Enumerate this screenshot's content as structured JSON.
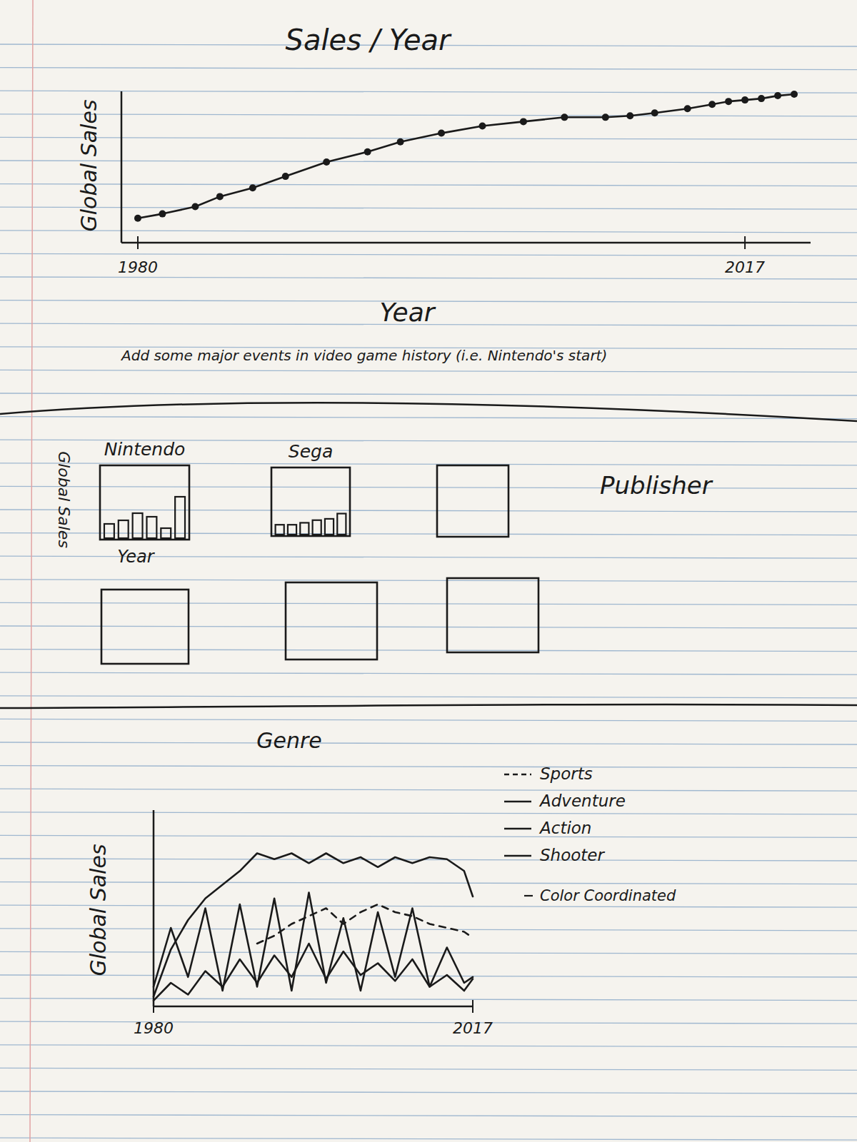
{
  "chart_data": [
    {
      "type": "line",
      "title": "Sales / Year",
      "x_label": "Year",
      "y_label": "Global Sales",
      "annotation": "Add some major events in video game history (i.e. Nintendo's start)",
      "x": [
        1980,
        1981.5,
        1983.5,
        1985,
        1987,
        1989,
        1991.5,
        1994,
        1996,
        1998.5,
        2001,
        2003.5,
        2006,
        2008.5,
        2010,
        2011.5,
        2013.5,
        2015,
        2016,
        2017,
        2018,
        2019,
        2020
      ],
      "values": [
        1.7,
        2.0,
        2.5,
        3.2,
        3.8,
        4.6,
        5.6,
        6.3,
        7.0,
        7.6,
        8.1,
        8.4,
        8.7,
        8.7,
        8.8,
        9.0,
        9.3,
        9.6,
        9.8,
        9.9,
        10.0,
        10.2,
        10.3
      ],
      "color": "#1a1a1a",
      "marker": "circle",
      "xlim": [
        1979,
        2021
      ],
      "ylim": [
        0,
        10.5
      ],
      "xticks": [
        1980,
        2017
      ],
      "tick_labels": "x"
    },
    {
      "type": "bar",
      "title": "Publisher",
      "x_label": "Year",
      "y_label": "Global Sales",
      "ylim": [
        0,
        10
      ],
      "tick_labels": false,
      "color": "#1a1a1a",
      "panels": [
        {
          "title": "Nintendo",
          "categories": [
            null,
            null,
            null,
            null,
            null,
            null
          ],
          "values": [
            2.0,
            2.5,
            3.5,
            3.0,
            1.4,
            5.8
          ]
        },
        {
          "title": "Sega",
          "categories": [
            null,
            null,
            null,
            null,
            null,
            null
          ],
          "values": [
            1.5,
            1.5,
            1.8,
            2.2,
            2.4,
            3.2
          ]
        },
        {
          "categories": [],
          "values": []
        },
        {
          "categories": [],
          "values": []
        },
        {
          "categories": [],
          "values": []
        },
        {
          "categories": [],
          "values": []
        }
      ]
    },
    {
      "type": "line",
      "title": "Genre",
      "y_label": "Global Sales",
      "note": "Color Coordinated",
      "x": [
        1980,
        1982,
        1984,
        1986,
        1988,
        1990,
        1992,
        1994,
        1996,
        1998,
        2000,
        2002,
        2004,
        2006,
        2008,
        2010,
        2012,
        2014,
        2016,
        2017
      ],
      "series": [
        {
          "name": "Sports",
          "color": "#1a1a1a",
          "line_style": "dashed",
          "values": [
            null,
            null,
            null,
            null,
            null,
            null,
            3.2,
            3.6,
            4.2,
            4.6,
            5.0,
            4.2,
            4.8,
            5.2,
            4.8,
            4.6,
            4.2,
            4.0,
            3.8,
            3.5
          ]
        },
        {
          "name": "Adventure",
          "color": "#1a1a1a",
          "line_style": "solid",
          "values": [
            1.0,
            4.0,
            1.5,
            5.0,
            0.8,
            5.2,
            1.0,
            5.5,
            0.8,
            5.8,
            1.2,
            4.5,
            0.8,
            4.8,
            1.5,
            5.0,
            1.0,
            3.0,
            1.2,
            1.5
          ]
        },
        {
          "name": "Action",
          "color": "#1a1a1a",
          "line_style": "solid",
          "values": [
            0.5,
            2.9,
            4.4,
            5.5,
            6.2,
            6.9,
            7.8,
            7.5,
            7.8,
            7.3,
            7.8,
            7.3,
            7.6,
            7.1,
            7.6,
            7.3,
            7.6,
            7.5,
            6.9,
            5.6
          ]
        },
        {
          "name": "Shooter",
          "color": "#1a1a1a",
          "line_style": "solid",
          "values": [
            0.3,
            1.2,
            0.6,
            1.8,
            1.0,
            2.4,
            1.2,
            2.6,
            1.5,
            3.2,
            1.4,
            2.8,
            1.6,
            2.2,
            1.3,
            2.4,
            1.0,
            1.6,
            0.8,
            1.4
          ]
        }
      ],
      "xlim": [
        1980,
        2017
      ],
      "ylim": [
        0,
        10
      ],
      "xticks": [
        1980,
        2017
      ],
      "tick_labels": "x",
      "legend": "right"
    }
  ]
}
